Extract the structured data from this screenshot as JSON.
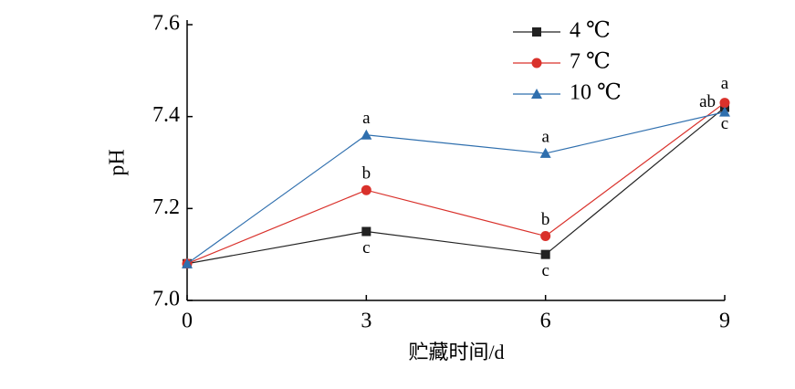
{
  "chart_data": {
    "type": "line",
    "x_label": "贮藏时间/d",
    "y_label": "pH",
    "x": [
      0,
      3,
      6,
      9
    ],
    "xlim": [
      0,
      9
    ],
    "xticks": [
      0,
      3,
      6,
      9
    ],
    "ylim": [
      7.0,
      7.6
    ],
    "yticks": [
      {
        "value": 7.0,
        "label": "7.0"
      },
      7.2,
      7.4,
      7.6
    ],
    "legend": "top-right",
    "series": [
      {
        "name": "4 ℃",
        "color": "#222222",
        "marker": "square",
        "values": [
          7.08,
          7.15,
          7.1,
          7.42
        ],
        "annotations": [
          null,
          "c",
          "c",
          "c"
        ]
      },
      {
        "name": "7 ℃",
        "color": "#d9312b",
        "marker": "circle",
        "values": [
          7.08,
          7.24,
          7.14,
          7.43
        ],
        "annotations": [
          null,
          "b",
          "b",
          "a"
        ]
      },
      {
        "name": "10 ℃",
        "color": "#2f6fae",
        "marker": "triangle",
        "values": [
          7.08,
          7.36,
          7.32,
          7.41
        ],
        "annotations": [
          null,
          "a",
          "a",
          "ab"
        ]
      }
    ]
  }
}
